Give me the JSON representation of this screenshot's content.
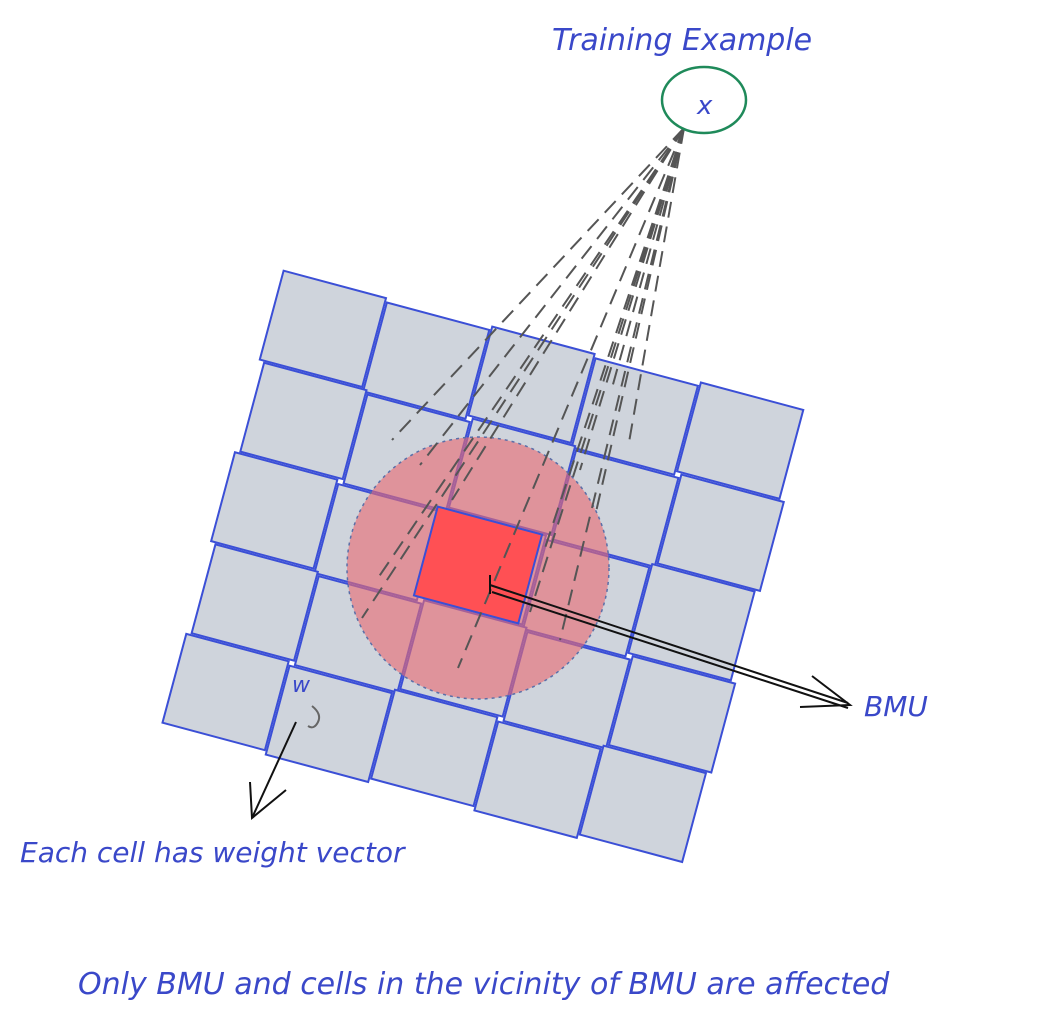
{
  "labels": {
    "training_example": "Training Example",
    "x_marker": "x",
    "bmu": "BMU",
    "w_marker": "w",
    "each_cell": "Each cell has weight vector",
    "caption": "Only BMU and cells in the vicinity of BMU are affected"
  },
  "grid": {
    "rows": 5,
    "cols": 5,
    "bmu_cell": [
      2,
      2
    ]
  },
  "colors": {
    "ink": "#3a48c9",
    "cell_fill": "#cfd4dc",
    "cell_stroke": "#3b4fd6",
    "neighborhood": "#e86a72",
    "bmu": "#ff5054",
    "training_circle": "#1f8a5a",
    "dash": "#555555",
    "arrow": "#111111",
    "orange_accent": "#f5a623"
  }
}
